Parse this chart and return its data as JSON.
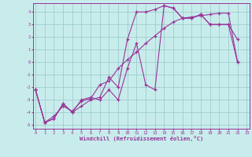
{
  "bg_color": "#c8ecec",
  "grid_color": "#a0cccc",
  "line_color": "#993399",
  "xlabel": "Windchill (Refroidissement éolien,°C)",
  "xlim_min": 0,
  "xlim_max": 23,
  "ylim_min": -5.3,
  "ylim_max": 4.7,
  "xticks": [
    0,
    1,
    2,
    3,
    4,
    5,
    6,
    7,
    8,
    9,
    10,
    11,
    12,
    13,
    14,
    15,
    16,
    17,
    18,
    19,
    20,
    21,
    22,
    23
  ],
  "yticks": [
    -5,
    -4,
    -3,
    -2,
    -1,
    0,
    1,
    2,
    3,
    4
  ],
  "s1_x": [
    0,
    1,
    2,
    3,
    4,
    5,
    6,
    7,
    8,
    9,
    10,
    11,
    12,
    13,
    14,
    15,
    16,
    17,
    18,
    19,
    20,
    21,
    22
  ],
  "s1_y": [
    -2.2,
    -4.8,
    -4.5,
    -3.3,
    -4.0,
    -3.5,
    -3.0,
    -2.8,
    -1.2,
    -2.0,
    1.8,
    4.0,
    4.0,
    4.2,
    4.5,
    4.3,
    3.5,
    3.5,
    3.8,
    3.0,
    3.0,
    3.0,
    1.8
  ],
  "s2_x": [
    0,
    1,
    2,
    3,
    4,
    5,
    6,
    7,
    8,
    9,
    10,
    11,
    12,
    13,
    14,
    15,
    16,
    17,
    18,
    19,
    20,
    21,
    22
  ],
  "s2_y": [
    -2.2,
    -4.8,
    -4.5,
    -3.3,
    -4.0,
    -3.0,
    -2.8,
    -3.0,
    -2.2,
    -3.0,
    -0.5,
    1.5,
    -1.8,
    -2.2,
    4.5,
    4.3,
    3.5,
    3.5,
    3.8,
    3.0,
    3.0,
    3.0,
    0.0
  ],
  "s3_x": [
    0,
    1,
    2,
    3,
    4,
    5,
    6,
    7,
    8,
    9,
    10,
    11,
    12,
    13,
    14,
    15,
    16,
    17,
    18,
    19,
    20,
    21,
    22
  ],
  "s3_y": [
    -2.2,
    -4.8,
    -4.3,
    -3.5,
    -3.9,
    -3.1,
    -2.9,
    -1.8,
    -1.5,
    -0.5,
    0.2,
    0.8,
    1.5,
    2.1,
    2.7,
    3.2,
    3.5,
    3.6,
    3.7,
    3.8,
    3.9,
    3.9,
    0.0
  ]
}
